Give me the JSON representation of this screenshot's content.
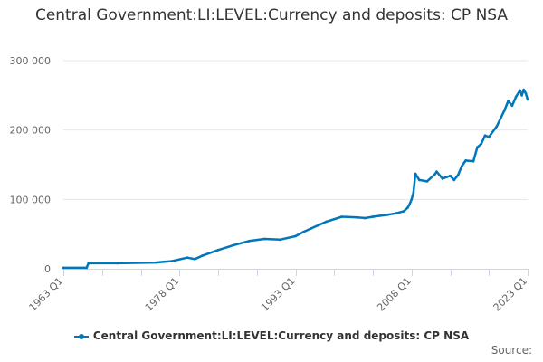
{
  "chart_data": {
    "type": "line",
    "title": "Central Government:LI:LEVEL:Currency and deposits: CP NSA",
    "xlabel": "",
    "ylabel": "",
    "x_tick_labels": [
      "1963 Q1",
      "1978 Q1",
      "1993 Q1",
      "2008 Q1",
      "2023 Q1"
    ],
    "y_tick_labels": [
      "0",
      "100 000",
      "200 000",
      "300 000"
    ],
    "y_ticks": [
      0,
      100000,
      200000,
      300000
    ],
    "ylim": [
      0,
      300000
    ],
    "xlim": [
      "1963 Q1",
      "2023 Q1"
    ],
    "grid": "horizontal",
    "legend_position": "bottom",
    "series": [
      {
        "name": "Central Government:LI:LEVEL:Currency and deposits: CP NSA",
        "color": "#0077bb",
        "x": [
          "1963 Q1",
          "1966 Q1",
          "1966 Q2",
          "1970 Q1",
          "1975 Q1",
          "1976 Q1",
          "1977 Q1",
          "1979 Q1",
          "1980 Q1",
          "1981 Q1",
          "1983 Q1",
          "1985 Q1",
          "1987 Q1",
          "1989 Q1",
          "1991 Q1",
          "1993 Q1",
          "1994 Q1",
          "1995 Q1",
          "1996 Q1",
          "1997 Q1",
          "1999 Q1",
          "2001 Q1",
          "2002 Q1",
          "2003 Q1",
          "2005 Q1",
          "2006 Q1",
          "2007 Q1",
          "2007 Q3",
          "2007 Q4",
          "2008 Q1",
          "2008 Q2",
          "2008 Q3",
          "2009 Q1",
          "2010 Q1",
          "2011 Q1",
          "2011 Q2",
          "2012 Q1",
          "2013 Q1",
          "2013 Q3",
          "2014 Q1",
          "2014 Q3",
          "2015 Q1",
          "2016 Q1",
          "2016 Q3",
          "2017 Q1",
          "2017 Q3",
          "2018 Q1",
          "2019 Q1",
          "2020 Q1",
          "2020 Q3",
          "2021 Q1",
          "2021 Q3",
          "2022 Q1",
          "2022 Q2",
          "2022 Q3",
          "2022 Q4",
          "2023 Q1"
        ],
        "values": [
          1500,
          1500,
          8000,
          8000,
          9000,
          10000,
          11000,
          16000,
          14000,
          19000,
          27000,
          34000,
          40000,
          43000,
          42000,
          47000,
          53000,
          58000,
          63000,
          68000,
          75000,
          74000,
          73000,
          75000,
          78000,
          80000,
          83000,
          88000,
          93000,
          100000,
          110000,
          137000,
          128000,
          126000,
          136000,
          140000,
          130000,
          134000,
          128000,
          135000,
          148000,
          156000,
          155000,
          175000,
          180000,
          192000,
          190000,
          205000,
          228000,
          242000,
          235000,
          248000,
          257000,
          250000,
          258000,
          253000,
          244000
        ]
      }
    ]
  },
  "legend": {
    "label": "Central Government:LI:LEVEL:Currency and deposits: CP NSA"
  },
  "footer": {
    "source_label": "Source:"
  }
}
